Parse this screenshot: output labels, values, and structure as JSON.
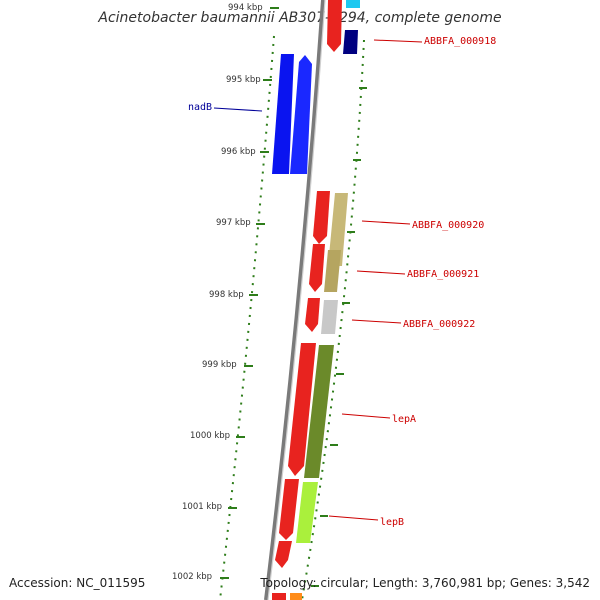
{
  "title": "Acinetobacter baumannii AB307-0294, complete genome",
  "accession_text": "Accession: NC_011595",
  "topology_text": "Topology: circular; Length: 3,760,981 bp; Genes: 3,542",
  "colors": {
    "backbone": "#7a7a7a",
    "tick": "#2e7d1a",
    "label_red": "#cc0000",
    "label_blue": "#000099"
  },
  "ticks": [
    {
      "label": "994 kbp",
      "kbp": 994
    },
    {
      "label": "995 kbp",
      "kbp": 995
    },
    {
      "label": "996 kbp",
      "kbp": 996
    },
    {
      "label": "997 kbp",
      "kbp": 997
    },
    {
      "label": "998 kbp",
      "kbp": 998
    },
    {
      "label": "999 kbp",
      "kbp": 999
    },
    {
      "label": "1000 kbp",
      "kbp": 1000
    },
    {
      "label": "1001 kbp",
      "kbp": 1001
    },
    {
      "label": "1002 kbp",
      "kbp": 1002
    }
  ],
  "gene_labels": [
    {
      "text": "ABBFA_000918",
      "color": "red"
    },
    {
      "text": "nadB",
      "color": "blue"
    },
    {
      "text": "ABBFA_000920",
      "color": "red"
    },
    {
      "text": "ABBFA_000921",
      "color": "red"
    },
    {
      "text": "ABBFA_000922",
      "color": "red"
    },
    {
      "text": "lepA",
      "color": "red"
    },
    {
      "text": "lepB",
      "color": "red"
    }
  ],
  "features": [
    {
      "name": "ABBFA_000918 cds",
      "color": "#e8231f"
    },
    {
      "name": "ABBFA_000918 gene",
      "color": "#000080"
    },
    {
      "name": "top cyan feature",
      "color": "#1ec8f0"
    },
    {
      "name": "nadB gene",
      "color": "#0a14f0"
    },
    {
      "name": "nadB cds",
      "color": "#1a28ff"
    },
    {
      "name": "ABBFA_000920 cds",
      "color": "#e8231f"
    },
    {
      "name": "ABBFA_000920 gene",
      "color": "#c7b878"
    },
    {
      "name": "ABBFA_000921 cds",
      "color": "#e8231f"
    },
    {
      "name": "ABBFA_000921 gene",
      "color": "#b5a560"
    },
    {
      "name": "ABBFA_000922 cds",
      "color": "#e8231f"
    },
    {
      "name": "ABBFA_000922 gene",
      "color": "#c8c8c8"
    },
    {
      "name": "lepA cds",
      "color": "#e8231f"
    },
    {
      "name": "lepA gene",
      "color": "#6b8a2a"
    },
    {
      "name": "lepB cds",
      "color": "#e8231f"
    },
    {
      "name": "lepB gene",
      "color": "#aaf03c"
    },
    {
      "name": "bottom cds",
      "color": "#e8231f"
    },
    {
      "name": "bottom orange feature",
      "color": "#ff8c1a"
    }
  ]
}
